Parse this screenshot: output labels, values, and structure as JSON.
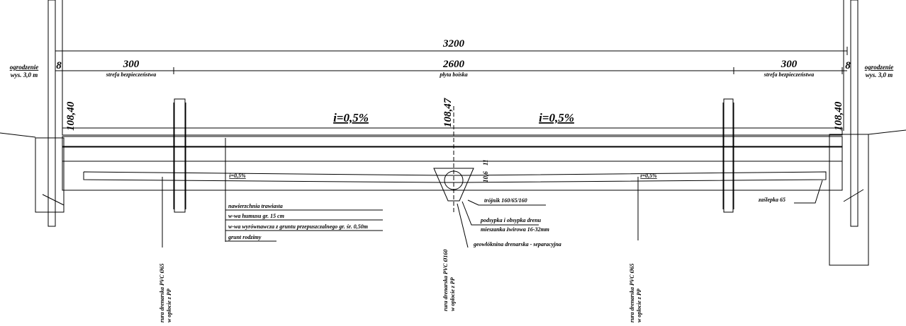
{
  "dimensions": {
    "total": "3200",
    "left_zone": "300",
    "left_zone_label": "strefa bezpieczeństwa",
    "pitch": "2600",
    "pitch_label": "płyta boiska",
    "right_zone": "300",
    "right_zone_label": "strefa bezpieczeństwa",
    "left_fence_width": "8",
    "right_fence_width": "8"
  },
  "fences": [
    {
      "label": "ogrodzenie",
      "height": "wys. 3,0 m"
    },
    {
      "label": "ogrodzenie",
      "height": "wys. 3,0 m"
    }
  ],
  "elevations": [
    "108,40",
    "108,47",
    "108,40"
  ],
  "slopes": [
    "i=0,5%",
    "i=0,5%"
  ],
  "pipe_slopes": [
    "i=0,5%",
    "i=0,5%"
  ],
  "center_dims": [
    "10,6",
    "11"
  ],
  "layers": [
    "nawierzchnia trawiasta",
    "w-wa humusu gr. 15 cm",
    "w-wa wyrównawcza z gruntu przepuszczalnego gr. śr. 0,50m",
    "grunt rodzimy"
  ],
  "notes": {
    "tee": "trójnik 160/65/160",
    "bedding": [
      "podsypka i obsypka drenu",
      "mieszanka żwirowa 16-32mm"
    ],
    "geotextile": "geowłóknina drenarska - separacyjna",
    "cap": "zaślepka 65"
  },
  "pipes": [
    {
      "label": "rura drenarska PVC Ø65",
      "sheath": "w oplocie z PP"
    },
    {
      "label": "rura drenarska PVC Ø160",
      "sheath": "w oplocie z PP"
    },
    {
      "label": "rura drenarska PVC Ø65",
      "sheath": "w oplocie z PP"
    }
  ]
}
